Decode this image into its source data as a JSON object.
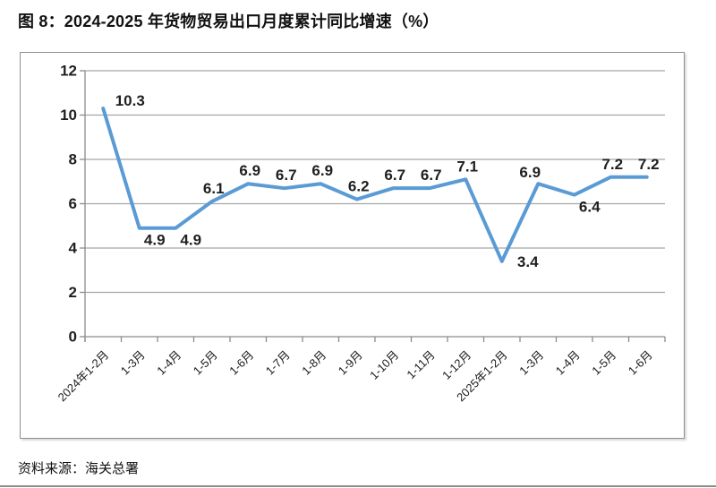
{
  "figure": {
    "title": "图 8：2024-2025 年货物贸易出口月度累计同比增速（%）",
    "source": "资料来源：海关总署"
  },
  "colors": {
    "line": "#5B9BD5",
    "grid": "#A6A6A6",
    "axis": "#8C8C8C",
    "tick_label": "#1F1F1F",
    "data_label": "#1F1F1F",
    "box_border": "#8F8F8F"
  },
  "chart_data": {
    "type": "line",
    "title": "图 8：2024-2025 年货物贸易出口月度累计同比增速（%）",
    "categories": [
      "2024年1-2月",
      "1-3月",
      "1-4月",
      "1-5月",
      "1-6月",
      "1-7月",
      "1-8月",
      "1-9月",
      "1-10月",
      "1-11月",
      "1-12月",
      "2025年1-2月",
      "1-3月",
      "1-4月",
      "1-5月",
      "1-6月"
    ],
    "values": [
      10.3,
      4.9,
      4.9,
      6.1,
      6.9,
      6.7,
      6.9,
      6.2,
      6.7,
      6.7,
      7.1,
      3.4,
      6.9,
      6.4,
      7.2,
      7.2
    ],
    "xlabel": "",
    "ylabel": "",
    "ylim": [
      0,
      12
    ],
    "yticks": [
      0,
      2,
      4,
      6,
      8,
      10,
      12
    ],
    "grid": true,
    "legend": "none",
    "data_labels": true,
    "label_positions": [
      "above-right",
      "below",
      "below",
      "above",
      "above",
      "above",
      "above",
      "above",
      "above",
      "above",
      "above",
      "right",
      "above-left",
      "below",
      "above",
      "above"
    ],
    "source": "资料来源：海关总署"
  }
}
